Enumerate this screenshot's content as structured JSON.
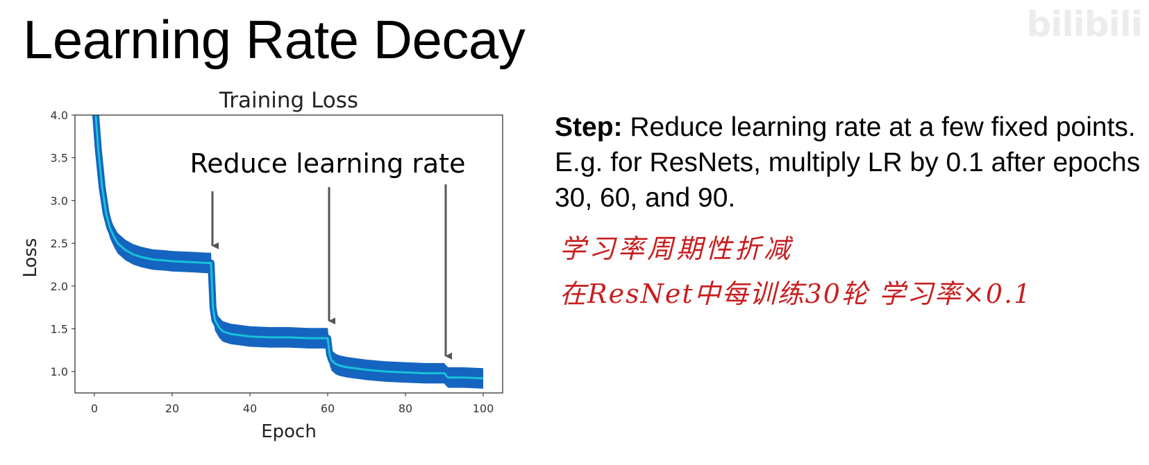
{
  "slide": {
    "title": "Learning Rate Decay",
    "watermark": "bilibili"
  },
  "description": {
    "label": "Step:",
    "text": " Reduce learning rate at a few fixed points. E.g. for ResNets, multiply LR by 0.1 after epochs 30, 60, and 90."
  },
  "handwritten_notes": [
    "学习率周期性折减",
    "在ResNet中每训练30轮 学习率×0.1"
  ],
  "chart_data": {
    "type": "line",
    "title": "Training Loss",
    "xlabel": "Epoch",
    "ylabel": "Loss",
    "xlim": [
      -5,
      105
    ],
    "ylim": [
      0.75,
      4.0
    ],
    "x_ticks": [
      0,
      20,
      40,
      60,
      80,
      100
    ],
    "y_ticks": [
      1.0,
      1.5,
      2.0,
      2.5,
      3.0,
      3.5,
      4.0
    ],
    "annotation": "Reduce learning rate",
    "arrow_epochs": [
      30,
      60,
      90
    ],
    "series": [
      {
        "name": "",
        "color": "#1565c0",
        "band_half_width": 0.12,
        "x": [
          0,
          1,
          2,
          3,
          4,
          5,
          6,
          8,
          10,
          12,
          15,
          18,
          20,
          25,
          29,
          30,
          30.5,
          31,
          32,
          33,
          35,
          40,
          45,
          50,
          55,
          59,
          60,
          60.5,
          61,
          62,
          63,
          65,
          70,
          75,
          80,
          85,
          89,
          90,
          90.5,
          91,
          95,
          100
        ],
        "y": [
          4.2,
          3.6,
          3.15,
          2.85,
          2.68,
          2.58,
          2.5,
          2.42,
          2.37,
          2.34,
          2.31,
          2.3,
          2.29,
          2.28,
          2.27,
          2.27,
          1.75,
          1.6,
          1.52,
          1.47,
          1.44,
          1.41,
          1.4,
          1.4,
          1.39,
          1.39,
          1.39,
          1.2,
          1.13,
          1.09,
          1.07,
          1.05,
          1.02,
          1.0,
          0.99,
          0.98,
          0.98,
          0.98,
          0.95,
          0.93,
          0.93,
          0.92
        ]
      }
    ],
    "mean_line_color": "#19c2d6"
  }
}
